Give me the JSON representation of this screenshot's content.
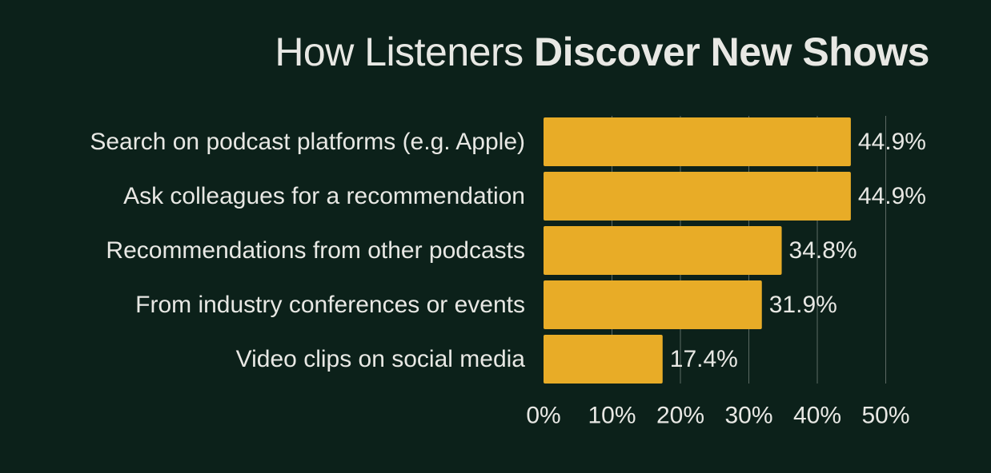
{
  "title": {
    "light": "How Listeners",
    "bold": "Discover New Shows"
  },
  "colors": {
    "background": "#0c211a",
    "bar": "#e8ac27",
    "text": "#e8e8e4",
    "grid": "#5d6a64"
  },
  "chart_data": {
    "type": "bar",
    "orientation": "horizontal",
    "categories": [
      "Search on podcast platforms (e.g. Apple)",
      "Ask colleagues for a recommendation",
      "Recommendations from other podcasts",
      "From industry conferences or events",
      "Video clips on social media"
    ],
    "values": [
      44.9,
      44.9,
      34.8,
      31.9,
      17.4
    ],
    "value_labels": [
      "44.9%",
      "44.9%",
      "34.8%",
      "31.9%",
      "17.4%"
    ],
    "xlim": [
      0,
      50
    ],
    "xticks": [
      0,
      10,
      20,
      30,
      40,
      50
    ],
    "xtick_labels": [
      "0%",
      "10%",
      "20%",
      "30%",
      "40%",
      "50%"
    ],
    "grid": "vertical",
    "legend": "none"
  }
}
